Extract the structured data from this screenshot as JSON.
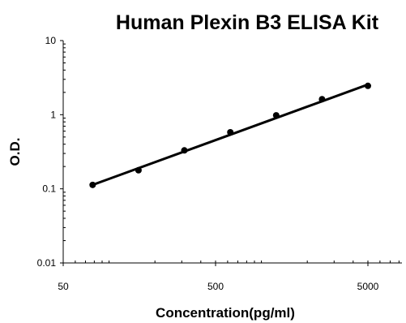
{
  "chart_data": {
    "type": "scatter",
    "title": "Human Plexin B3 ELISA Kit",
    "xlabel": "Concentration(pg/ml)",
    "ylabel": "O.D.",
    "xscale": "log",
    "yscale": "log",
    "xlim": [
      50,
      8000
    ],
    "ylim": [
      0.01,
      10
    ],
    "xticks": [
      {
        "value": 50,
        "label": "50"
      },
      {
        "value": 500,
        "label": "500"
      },
      {
        "value": 5000,
        "label": "5000"
      }
    ],
    "yticks": [
      {
        "value": 0.01,
        "label": "0.01"
      },
      {
        "value": 0.1,
        "label": "0.1"
      },
      {
        "value": 1,
        "label": "1"
      },
      {
        "value": 10,
        "label": "10"
      }
    ],
    "grid": false,
    "series": [
      {
        "points": [
          {
            "x": 78,
            "y": 0.113
          },
          {
            "x": 156,
            "y": 0.178
          },
          {
            "x": 312,
            "y": 0.33
          },
          {
            "x": 625,
            "y": 0.58
          },
          {
            "x": 1250,
            "y": 0.98
          },
          {
            "x": 2500,
            "y": 1.62
          },
          {
            "x": 5000,
            "y": 2.45
          }
        ],
        "fit": {
          "x_start": 78,
          "x_end": 5000,
          "y_start": 0.113,
          "y_end": 2.55
        }
      }
    ]
  }
}
